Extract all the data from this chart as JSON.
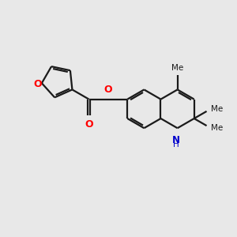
{
  "bg_color": "#e8e8e8",
  "bond_color": "#1a1a1a",
  "o_color": "#ff0000",
  "n_color": "#0000cc",
  "me_color": "#1a1a1a",
  "lw": 1.6,
  "figsize": [
    3.0,
    3.0
  ],
  "dpi": 100,
  "xlim": [
    0,
    10
  ],
  "ylim": [
    0,
    10
  ]
}
